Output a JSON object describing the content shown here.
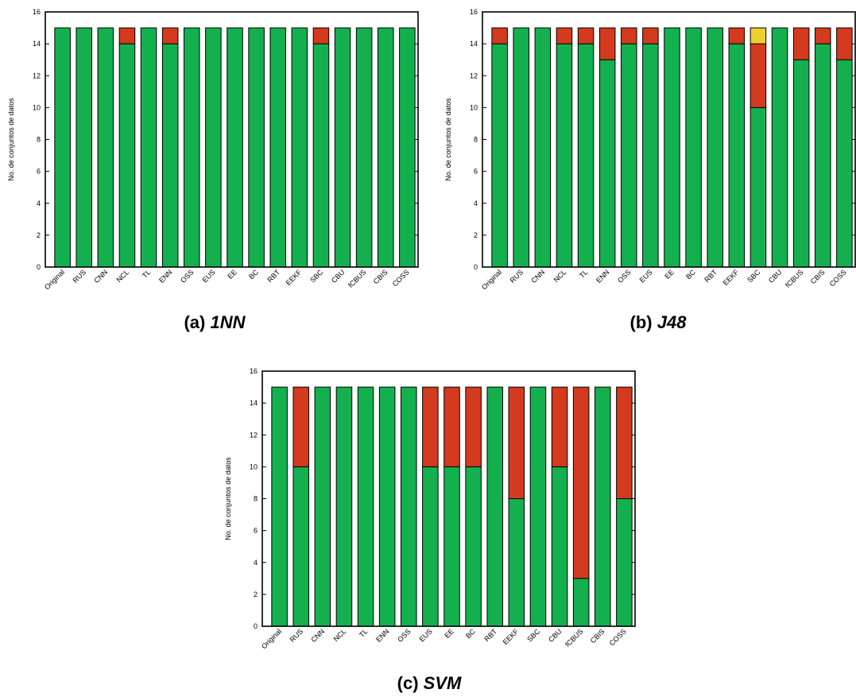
{
  "colors": {
    "green": "#14b04f",
    "red": "#d43a1e",
    "yellow": "#ecd12c"
  },
  "chart_data": [
    {
      "type": "bar",
      "stacked": true,
      "caption_label": "(a)",
      "caption_name": "1NN",
      "ylabel": "No. de conjuntos de datos",
      "ylim": [
        0,
        16
      ],
      "yticks": [
        0,
        2,
        4,
        6,
        8,
        10,
        12,
        14,
        16
      ],
      "categories": [
        "Original",
        "RUS",
        "CNN",
        "NCL",
        "TL",
        "ENN",
        "OSS",
        "EUS",
        "EE",
        "BC",
        "RBT",
        "EEKF",
        "SBC",
        "CBU",
        "fCBUS",
        "CBIS",
        "COSS"
      ],
      "series": [
        {
          "color": "green",
          "values": [
            15,
            15,
            15,
            14,
            15,
            14,
            15,
            15,
            15,
            15,
            15,
            15,
            14,
            15,
            15,
            15,
            15
          ]
        },
        {
          "color": "red",
          "values": [
            0,
            0,
            0,
            1,
            0,
            1,
            0,
            0,
            0,
            0,
            0,
            0,
            1,
            0,
            0,
            0,
            0
          ]
        },
        {
          "color": "yellow",
          "values": [
            0,
            0,
            0,
            0,
            0,
            0,
            0,
            0,
            0,
            0,
            0,
            0,
            0,
            0,
            0,
            0,
            0
          ]
        }
      ]
    },
    {
      "type": "bar",
      "stacked": true,
      "caption_label": "(b)",
      "caption_name": "J48",
      "ylabel": "No. de conjuntos de datos",
      "ylim": [
        0,
        16
      ],
      "yticks": [
        0,
        2,
        4,
        6,
        8,
        10,
        12,
        14,
        16
      ],
      "categories": [
        "Original",
        "RUS",
        "CNN",
        "NCL",
        "TL",
        "ENN",
        "OSS",
        "EUS",
        "EE",
        "BC",
        "RBT",
        "EEKF",
        "SBC",
        "CBU",
        "fCBUS",
        "CBIS",
        "COSS"
      ],
      "series": [
        {
          "color": "green",
          "values": [
            14,
            15,
            15,
            14,
            14,
            13,
            14,
            14,
            15,
            15,
            15,
            14,
            10,
            15,
            13,
            14,
            13
          ]
        },
        {
          "color": "red",
          "values": [
            1,
            0,
            0,
            1,
            1,
            2,
            1,
            1,
            0,
            0,
            0,
            1,
            4,
            0,
            2,
            1,
            2
          ]
        },
        {
          "color": "yellow",
          "values": [
            0,
            0,
            0,
            0,
            0,
            0,
            0,
            0,
            0,
            0,
            0,
            0,
            1,
            0,
            0,
            0,
            0
          ]
        }
      ]
    },
    {
      "type": "bar",
      "stacked": true,
      "caption_label": "(c)",
      "caption_name": "SVM",
      "ylabel": "No. de conjuntos de datos",
      "ylim": [
        0,
        16
      ],
      "yticks": [
        0,
        2,
        4,
        6,
        8,
        10,
        12,
        14,
        16
      ],
      "categories": [
        "Original",
        "RUS",
        "CNN",
        "NCL",
        "TL",
        "ENN",
        "OSS",
        "EUS",
        "EE",
        "BC",
        "RBT",
        "EEKF",
        "SBC",
        "CBU",
        "fCBUS",
        "CBIS",
        "COSS"
      ],
      "series": [
        {
          "color": "green",
          "values": [
            15,
            10,
            15,
            15,
            15,
            15,
            15,
            10,
            10,
            10,
            15,
            8,
            15,
            10,
            3,
            15,
            8
          ]
        },
        {
          "color": "red",
          "values": [
            0,
            5,
            0,
            0,
            0,
            0,
            0,
            5,
            5,
            5,
            0,
            7,
            0,
            5,
            12,
            0,
            7
          ]
        },
        {
          "color": "yellow",
          "values": [
            0,
            0,
            0,
            0,
            0,
            0,
            0,
            0,
            0,
            0,
            0,
            0,
            0,
            0,
            0,
            0,
            0
          ]
        }
      ]
    }
  ]
}
